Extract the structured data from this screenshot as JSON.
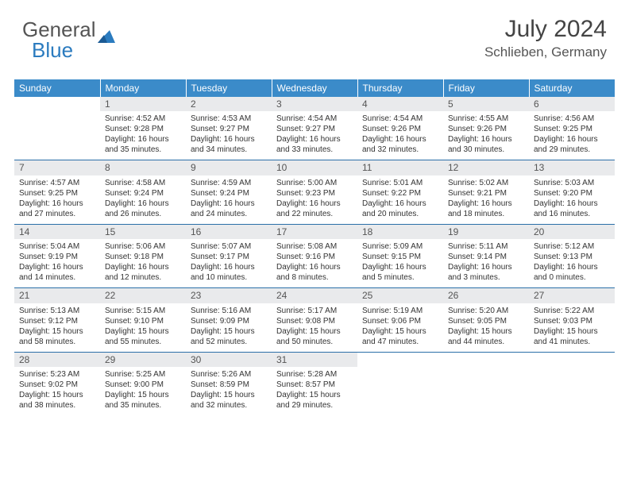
{
  "brand": {
    "part1": "General",
    "part2": "Blue"
  },
  "header": {
    "month": "July 2024",
    "location": "Schlieben, Germany"
  },
  "daynames": [
    "Sunday",
    "Monday",
    "Tuesday",
    "Wednesday",
    "Thursday",
    "Friday",
    "Saturday"
  ],
  "colors": {
    "header_bg": "#3b8bc9",
    "header_text": "#ffffff",
    "separator": "#2b6fa8",
    "daynum_bg": "#e9eaec",
    "text": "#333333",
    "logo_gray": "#555555",
    "logo_blue": "#2b7bbf"
  },
  "weeks": [
    [
      null,
      {
        "n": "1",
        "sr": "Sunrise: 4:52 AM",
        "ss": "Sunset: 9:28 PM",
        "d1": "Daylight: 16 hours",
        "d2": "and 35 minutes."
      },
      {
        "n": "2",
        "sr": "Sunrise: 4:53 AM",
        "ss": "Sunset: 9:27 PM",
        "d1": "Daylight: 16 hours",
        "d2": "and 34 minutes."
      },
      {
        "n": "3",
        "sr": "Sunrise: 4:54 AM",
        "ss": "Sunset: 9:27 PM",
        "d1": "Daylight: 16 hours",
        "d2": "and 33 minutes."
      },
      {
        "n": "4",
        "sr": "Sunrise: 4:54 AM",
        "ss": "Sunset: 9:26 PM",
        "d1": "Daylight: 16 hours",
        "d2": "and 32 minutes."
      },
      {
        "n": "5",
        "sr": "Sunrise: 4:55 AM",
        "ss": "Sunset: 9:26 PM",
        "d1": "Daylight: 16 hours",
        "d2": "and 30 minutes."
      },
      {
        "n": "6",
        "sr": "Sunrise: 4:56 AM",
        "ss": "Sunset: 9:25 PM",
        "d1": "Daylight: 16 hours",
        "d2": "and 29 minutes."
      }
    ],
    [
      {
        "n": "7",
        "sr": "Sunrise: 4:57 AM",
        "ss": "Sunset: 9:25 PM",
        "d1": "Daylight: 16 hours",
        "d2": "and 27 minutes."
      },
      {
        "n": "8",
        "sr": "Sunrise: 4:58 AM",
        "ss": "Sunset: 9:24 PM",
        "d1": "Daylight: 16 hours",
        "d2": "and 26 minutes."
      },
      {
        "n": "9",
        "sr": "Sunrise: 4:59 AM",
        "ss": "Sunset: 9:24 PM",
        "d1": "Daylight: 16 hours",
        "d2": "and 24 minutes."
      },
      {
        "n": "10",
        "sr": "Sunrise: 5:00 AM",
        "ss": "Sunset: 9:23 PM",
        "d1": "Daylight: 16 hours",
        "d2": "and 22 minutes."
      },
      {
        "n": "11",
        "sr": "Sunrise: 5:01 AM",
        "ss": "Sunset: 9:22 PM",
        "d1": "Daylight: 16 hours",
        "d2": "and 20 minutes."
      },
      {
        "n": "12",
        "sr": "Sunrise: 5:02 AM",
        "ss": "Sunset: 9:21 PM",
        "d1": "Daylight: 16 hours",
        "d2": "and 18 minutes."
      },
      {
        "n": "13",
        "sr": "Sunrise: 5:03 AM",
        "ss": "Sunset: 9:20 PM",
        "d1": "Daylight: 16 hours",
        "d2": "and 16 minutes."
      }
    ],
    [
      {
        "n": "14",
        "sr": "Sunrise: 5:04 AM",
        "ss": "Sunset: 9:19 PM",
        "d1": "Daylight: 16 hours",
        "d2": "and 14 minutes."
      },
      {
        "n": "15",
        "sr": "Sunrise: 5:06 AM",
        "ss": "Sunset: 9:18 PM",
        "d1": "Daylight: 16 hours",
        "d2": "and 12 minutes."
      },
      {
        "n": "16",
        "sr": "Sunrise: 5:07 AM",
        "ss": "Sunset: 9:17 PM",
        "d1": "Daylight: 16 hours",
        "d2": "and 10 minutes."
      },
      {
        "n": "17",
        "sr": "Sunrise: 5:08 AM",
        "ss": "Sunset: 9:16 PM",
        "d1": "Daylight: 16 hours",
        "d2": "and 8 minutes."
      },
      {
        "n": "18",
        "sr": "Sunrise: 5:09 AM",
        "ss": "Sunset: 9:15 PM",
        "d1": "Daylight: 16 hours",
        "d2": "and 5 minutes."
      },
      {
        "n": "19",
        "sr": "Sunrise: 5:11 AM",
        "ss": "Sunset: 9:14 PM",
        "d1": "Daylight: 16 hours",
        "d2": "and 3 minutes."
      },
      {
        "n": "20",
        "sr": "Sunrise: 5:12 AM",
        "ss": "Sunset: 9:13 PM",
        "d1": "Daylight: 16 hours",
        "d2": "and 0 minutes."
      }
    ],
    [
      {
        "n": "21",
        "sr": "Sunrise: 5:13 AM",
        "ss": "Sunset: 9:12 PM",
        "d1": "Daylight: 15 hours",
        "d2": "and 58 minutes."
      },
      {
        "n": "22",
        "sr": "Sunrise: 5:15 AM",
        "ss": "Sunset: 9:10 PM",
        "d1": "Daylight: 15 hours",
        "d2": "and 55 minutes."
      },
      {
        "n": "23",
        "sr": "Sunrise: 5:16 AM",
        "ss": "Sunset: 9:09 PM",
        "d1": "Daylight: 15 hours",
        "d2": "and 52 minutes."
      },
      {
        "n": "24",
        "sr": "Sunrise: 5:17 AM",
        "ss": "Sunset: 9:08 PM",
        "d1": "Daylight: 15 hours",
        "d2": "and 50 minutes."
      },
      {
        "n": "25",
        "sr": "Sunrise: 5:19 AM",
        "ss": "Sunset: 9:06 PM",
        "d1": "Daylight: 15 hours",
        "d2": "and 47 minutes."
      },
      {
        "n": "26",
        "sr": "Sunrise: 5:20 AM",
        "ss": "Sunset: 9:05 PM",
        "d1": "Daylight: 15 hours",
        "d2": "and 44 minutes."
      },
      {
        "n": "27",
        "sr": "Sunrise: 5:22 AM",
        "ss": "Sunset: 9:03 PM",
        "d1": "Daylight: 15 hours",
        "d2": "and 41 minutes."
      }
    ],
    [
      {
        "n": "28",
        "sr": "Sunrise: 5:23 AM",
        "ss": "Sunset: 9:02 PM",
        "d1": "Daylight: 15 hours",
        "d2": "and 38 minutes."
      },
      {
        "n": "29",
        "sr": "Sunrise: 5:25 AM",
        "ss": "Sunset: 9:00 PM",
        "d1": "Daylight: 15 hours",
        "d2": "and 35 minutes."
      },
      {
        "n": "30",
        "sr": "Sunrise: 5:26 AM",
        "ss": "Sunset: 8:59 PM",
        "d1": "Daylight: 15 hours",
        "d2": "and 32 minutes."
      },
      {
        "n": "31",
        "sr": "Sunrise: 5:28 AM",
        "ss": "Sunset: 8:57 PM",
        "d1": "Daylight: 15 hours",
        "d2": "and 29 minutes."
      },
      null,
      null,
      null
    ]
  ]
}
